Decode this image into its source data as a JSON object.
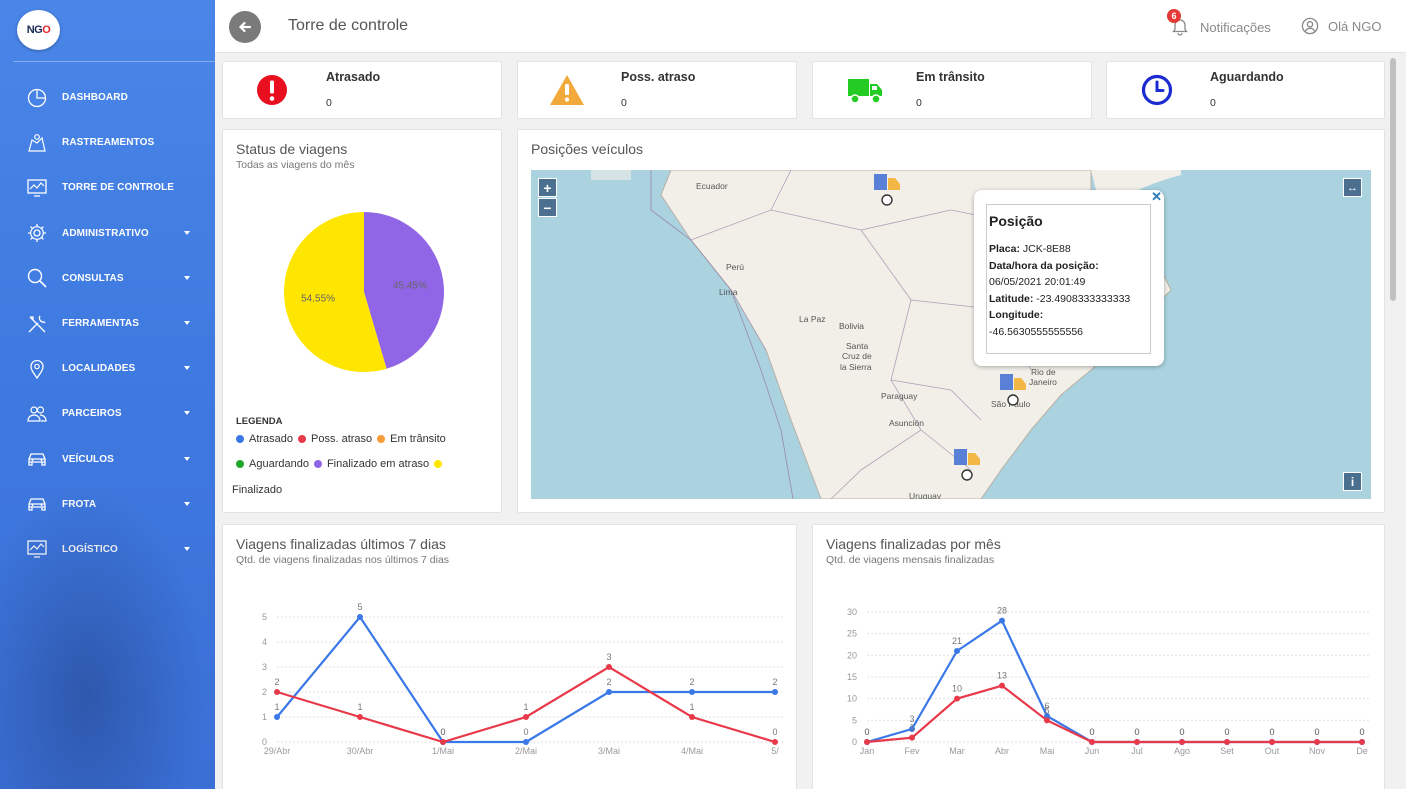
{
  "logo": {
    "text_a": "NG",
    "text_b": "O"
  },
  "nav": {
    "items": [
      {
        "label": "DASHBOARD",
        "icon": "pie-chart-icon",
        "caret": false
      },
      {
        "label": "RASTREAMENTOS",
        "icon": "map-route-icon",
        "caret": false
      },
      {
        "label": "TORRE DE CONTROLE",
        "icon": "monitor-chart-icon",
        "caret": false
      },
      {
        "label": "ADMINISTRATIVO",
        "icon": "gear-icon",
        "caret": true
      },
      {
        "label": "CONSULTAS",
        "icon": "search-icon",
        "caret": true
      },
      {
        "label": "FERRAMENTAS",
        "icon": "tools-icon",
        "caret": true
      },
      {
        "label": "LOCALIDADES",
        "icon": "location-pin-icon",
        "caret": true
      },
      {
        "label": "PARCEIROS",
        "icon": "partners-icon",
        "caret": true
      },
      {
        "label": "VEÍCULOS",
        "icon": "car-icon",
        "caret": true
      },
      {
        "label": "FROTA",
        "icon": "car-icon",
        "caret": true
      },
      {
        "label": "LOGÍSTICO",
        "icon": "monitor-chart-icon",
        "caret": true
      }
    ]
  },
  "header": {
    "title": "Torre de controle",
    "notifications_label": "Notificações",
    "notifications_count": "6",
    "user_label": "Olá NGO"
  },
  "stats": [
    {
      "name": "Atrasado",
      "value": "0",
      "icon": "alert-circle-icon",
      "color": "#e8101e"
    },
    {
      "name": "Poss. atraso",
      "value": "0",
      "icon": "warning-triangle-icon",
      "color": "#f2a93b"
    },
    {
      "name": "Em trânsito",
      "value": "0",
      "icon": "truck-icon",
      "color": "#22cc22"
    },
    {
      "name": "Aguardando",
      "value": "0",
      "icon": "clock-icon",
      "color": "#1b2bd1"
    }
  ],
  "status_card": {
    "title": "Status de viagens",
    "subtitle": "Todas as viagens do mês",
    "legend_title": "LEGENDA",
    "legend": [
      {
        "label": "Atrasado",
        "color": "#3b78e7"
      },
      {
        "label": "Poss. atraso",
        "color": "#e8394a"
      },
      {
        "label": "Em trânsito",
        "color": "#f89b3a"
      },
      {
        "label": "Aguardando",
        "color": "#1ca82a"
      },
      {
        "label": "Finalizado em atraso",
        "color": "#9166e6"
      },
      {
        "label": "Finalizado",
        "color": "#ffe600"
      }
    ]
  },
  "map_card": {
    "title": "Posições veículos",
    "popup": {
      "title": "Posição",
      "plate_label": "Placa:",
      "plate": "JCK-8E88",
      "datetime_label": "Data/hora da posição:",
      "datetime": "06/05/2021 20:01:49",
      "lat_label": "Latitude:",
      "lat": "-23.4908333333333",
      "lon_label": "Longitude:",
      "lon": "-46.5630555555556"
    },
    "labels": [
      {
        "text": "Ecuador"
      },
      {
        "text": "Perú"
      },
      {
        "text": "Lima"
      },
      {
        "text": "La Paz"
      },
      {
        "text": "Bolivia"
      },
      {
        "text": "Santa"
      },
      {
        "text": "Cruz de"
      },
      {
        "text": "la Sierra"
      },
      {
        "text": "Paraguay"
      },
      {
        "text": "Asunción"
      },
      {
        "text": "Rio de"
      },
      {
        "text": "Janeiro"
      },
      {
        "text": "São Paulo"
      },
      {
        "text": "Uruguay"
      }
    ],
    "zoom_in": "+",
    "zoom_out": "−",
    "fullscreen": "↔",
    "info": "i",
    "close": "✕"
  },
  "chart_data": [
    {
      "type": "pie",
      "title": "Status de viagens",
      "categories": [
        "Finalizado em atraso",
        "Finalizado"
      ],
      "values": [
        45.45,
        54.55
      ],
      "labels": [
        "45.45%",
        "54.55%"
      ],
      "colors": [
        "#9166e6",
        "#ffe600"
      ]
    },
    {
      "type": "line",
      "title": "Viagens finalizadas últimos 7 dias",
      "subtitle": "Qtd. de viagens finalizadas nos últimos 7 dias",
      "categories": [
        "29/Abr",
        "30/Abr",
        "1/Mai",
        "2/Mai",
        "3/Mai",
        "4/Mai",
        "5/"
      ],
      "series": [
        {
          "values": [
            1,
            5,
            0,
            0,
            2,
            2,
            2
          ],
          "color": "#3b78e7"
        },
        {
          "values": [
            2,
            1,
            0,
            1,
            3,
            1,
            0
          ],
          "color": "#e8394a"
        }
      ],
      "yticks": [
        "0",
        "1",
        "2",
        "3",
        "4",
        "5"
      ],
      "ylim": [
        0,
        5
      ]
    },
    {
      "type": "line",
      "title": "Viagens finalizadas por mês",
      "subtitle": "Qtd. de viagens mensais finalizadas",
      "categories": [
        "Jan",
        "Fev",
        "Mar",
        "Abr",
        "Mai",
        "Jun",
        "Jul",
        "Ago",
        "Set",
        "Out",
        "Nov",
        "De"
      ],
      "series": [
        {
          "values": [
            0,
            3,
            21,
            28,
            6,
            0,
            0,
            0,
            0,
            0,
            0,
            0
          ],
          "color": "#3b78e7"
        },
        {
          "values": [
            0,
            1,
            10,
            13,
            5,
            0,
            0,
            0,
            0,
            0,
            0,
            0
          ],
          "color": "#e8394a"
        }
      ],
      "point_labels": [
        "0",
        "3",
        "21",
        "28",
        "6",
        "0",
        "0",
        "0",
        "0",
        "0",
        "0",
        "0"
      ],
      "yticks": [
        "0",
        "5",
        "10",
        "15",
        "20",
        "25",
        "30"
      ],
      "ylim": [
        0,
        30
      ]
    }
  ]
}
